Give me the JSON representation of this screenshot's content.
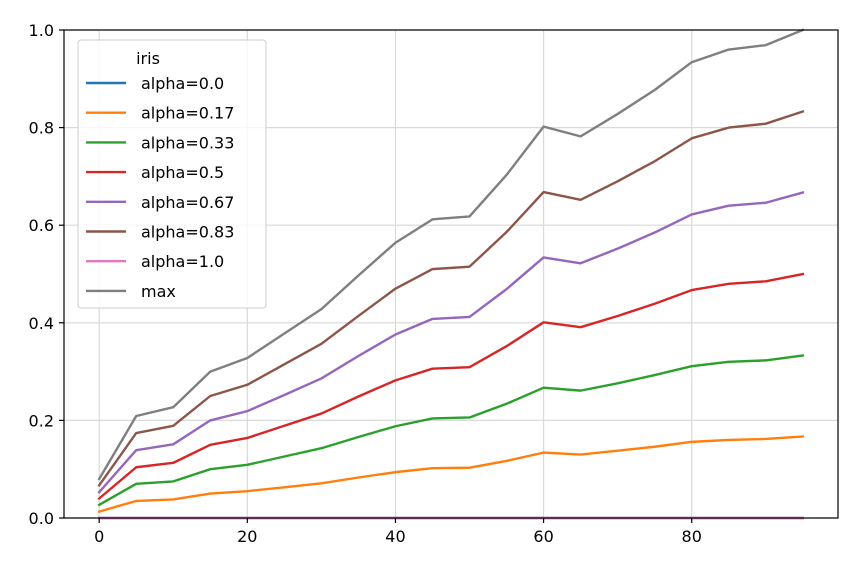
{
  "chart_data": {
    "type": "line",
    "legend_title": "iris",
    "legend_position": "upper-left",
    "grid": true,
    "xlim": [
      -4.75,
      99.75
    ],
    "ylim": [
      0,
      1.0
    ],
    "x_ticks": [
      0,
      20,
      40,
      60,
      80
    ],
    "x_tick_labels": [
      "0",
      "20",
      "40",
      "60",
      "80"
    ],
    "y_ticks": [
      0,
      0.2,
      0.4,
      0.6,
      0.8,
      1.0
    ],
    "y_tick_labels": [
      "0.0",
      "0.2",
      "0.4",
      "0.6",
      "0.8",
      "1.0"
    ],
    "x": [
      0,
      5,
      10,
      15,
      20,
      25,
      30,
      35,
      40,
      45,
      50,
      55,
      60,
      65,
      70,
      75,
      80,
      85,
      90,
      95
    ],
    "series": [
      {
        "name": "alpha=0.0",
        "color": "#1f77b4",
        "values": [
          0,
          0,
          0,
          0,
          0,
          0,
          0,
          0,
          0,
          0,
          0,
          0,
          0,
          0,
          0,
          0,
          0,
          0,
          0,
          0
        ]
      },
      {
        "name": "alpha=0.17",
        "color": "#ff7f0e",
        "values": [
          0.013,
          0.035,
          0.038,
          0.05,
          0.055,
          0.063,
          0.071,
          0.083,
          0.094,
          0.102,
          0.103,
          0.117,
          0.134,
          0.13,
          0.138,
          0.146,
          0.156,
          0.16,
          0.162,
          0.167
        ]
      },
      {
        "name": "alpha=0.33",
        "color": "#2ca02c",
        "values": [
          0.027,
          0.07,
          0.075,
          0.1,
          0.109,
          0.126,
          0.143,
          0.166,
          0.188,
          0.204,
          0.206,
          0.234,
          0.267,
          0.261,
          0.276,
          0.293,
          0.311,
          0.32,
          0.323,
          0.333
        ]
      },
      {
        "name": "alpha=0.5",
        "color": "#d62728",
        "values": [
          0.04,
          0.104,
          0.113,
          0.15,
          0.164,
          0.189,
          0.214,
          0.249,
          0.282,
          0.306,
          0.309,
          0.352,
          0.401,
          0.391,
          0.414,
          0.439,
          0.467,
          0.48,
          0.485,
          0.5
        ]
      },
      {
        "name": "alpha=0.67",
        "color": "#9467bd",
        "values": [
          0.053,
          0.139,
          0.151,
          0.2,
          0.219,
          0.252,
          0.286,
          0.332,
          0.376,
          0.408,
          0.412,
          0.469,
          0.534,
          0.522,
          0.552,
          0.585,
          0.622,
          0.64,
          0.646,
          0.667
        ]
      },
      {
        "name": "alpha=0.83",
        "color": "#8c564b",
        "values": [
          0.067,
          0.174,
          0.189,
          0.25,
          0.273,
          0.315,
          0.357,
          0.414,
          0.47,
          0.51,
          0.515,
          0.586,
          0.668,
          0.652,
          0.69,
          0.731,
          0.778,
          0.8,
          0.808,
          0.833
        ]
      },
      {
        "name": "alpha=1.0",
        "color": "#e377c2",
        "values": [
          0,
          0,
          0,
          0,
          0,
          0,
          0,
          0,
          0,
          0,
          0,
          0,
          0,
          0,
          0,
          0,
          0,
          0,
          0,
          0
        ]
      },
      {
        "name": "max",
        "color": "#7f7f7f",
        "values": [
          0.08,
          0.209,
          0.227,
          0.3,
          0.328,
          0.378,
          0.428,
          0.497,
          0.564,
          0.612,
          0.618,
          0.703,
          0.802,
          0.782,
          0.828,
          0.877,
          0.934,
          0.96,
          0.969,
          1.0
        ]
      }
    ]
  }
}
